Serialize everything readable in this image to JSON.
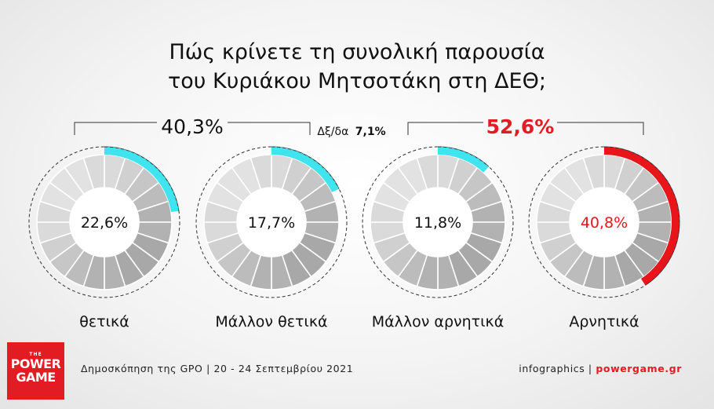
{
  "title": {
    "line1": "Πώς κρίνετε τη συνολική παρουσία",
    "line2": "του Κυριάκου Μητσοτάκη στη ΔΕΘ;"
  },
  "groups": {
    "positive_total": "40,3%",
    "negative_total": "52,6%",
    "dont_know_label": "Δξ/δα",
    "dont_know_value": "7,1%"
  },
  "chart_data": {
    "type": "pie",
    "categories": [
      "θετικά",
      "Μάλλον θετικά",
      "Μάλλον αρνητικά",
      "Αρνητικά"
    ],
    "values": [
      22.6,
      17.7,
      11.8,
      40.8
    ],
    "value_labels": [
      "22,6%",
      "17,7%",
      "11,8%",
      "40,8%"
    ],
    "ring_colors": [
      "#3fe4ee",
      "#3fe4ee",
      "#3fe4ee",
      "#e8151b"
    ],
    "value_label_colors": [
      "#111111",
      "#111111",
      "#111111",
      "#e8151b"
    ]
  },
  "footer": {
    "source": "Δημοσκόπηση της GPO | 20 - 24 Σεπτεμβρίου 2021",
    "credit_prefix": "infographics | ",
    "credit_brand": "powergame.gr"
  },
  "logo": {
    "small": "THE",
    "line1": "POWER",
    "line2": "GAME",
    "color": "#e31b23"
  }
}
